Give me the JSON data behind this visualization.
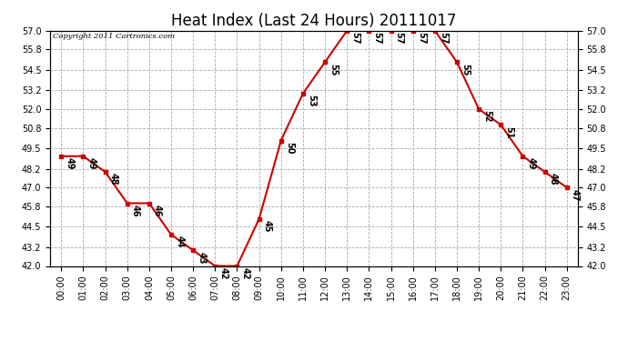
{
  "title": "Heat Index (Last 24 Hours) 20111017",
  "copyright": "Copyright 2011 Cartronics.com",
  "hours": [
    "00:00",
    "01:00",
    "02:00",
    "03:00",
    "04:00",
    "05:00",
    "06:00",
    "07:00",
    "08:00",
    "09:00",
    "10:00",
    "11:00",
    "12:00",
    "13:00",
    "14:00",
    "15:00",
    "16:00",
    "17:00",
    "18:00",
    "19:00",
    "20:00",
    "21:00",
    "22:00",
    "23:00"
  ],
  "values": [
    49,
    49,
    48,
    46,
    46,
    44,
    43,
    42,
    42,
    45,
    50,
    53,
    55,
    57,
    57,
    57,
    57,
    57,
    55,
    52,
    51,
    49,
    48,
    47
  ],
  "line_color": "#cc0000",
  "marker_color": "#cc0000",
  "background_color": "#ffffff",
  "grid_color": "#aaaaaa",
  "ylim_min": 42.0,
  "ylim_max": 57.0,
  "yticks": [
    42.0,
    43.2,
    44.5,
    45.8,
    47.0,
    48.2,
    49.5,
    50.8,
    52.0,
    53.2,
    54.5,
    55.8,
    57.0
  ],
  "title_fontsize": 12,
  "label_fontsize": 7,
  "annotation_fontsize": 7,
  "copyright_fontsize": 6
}
